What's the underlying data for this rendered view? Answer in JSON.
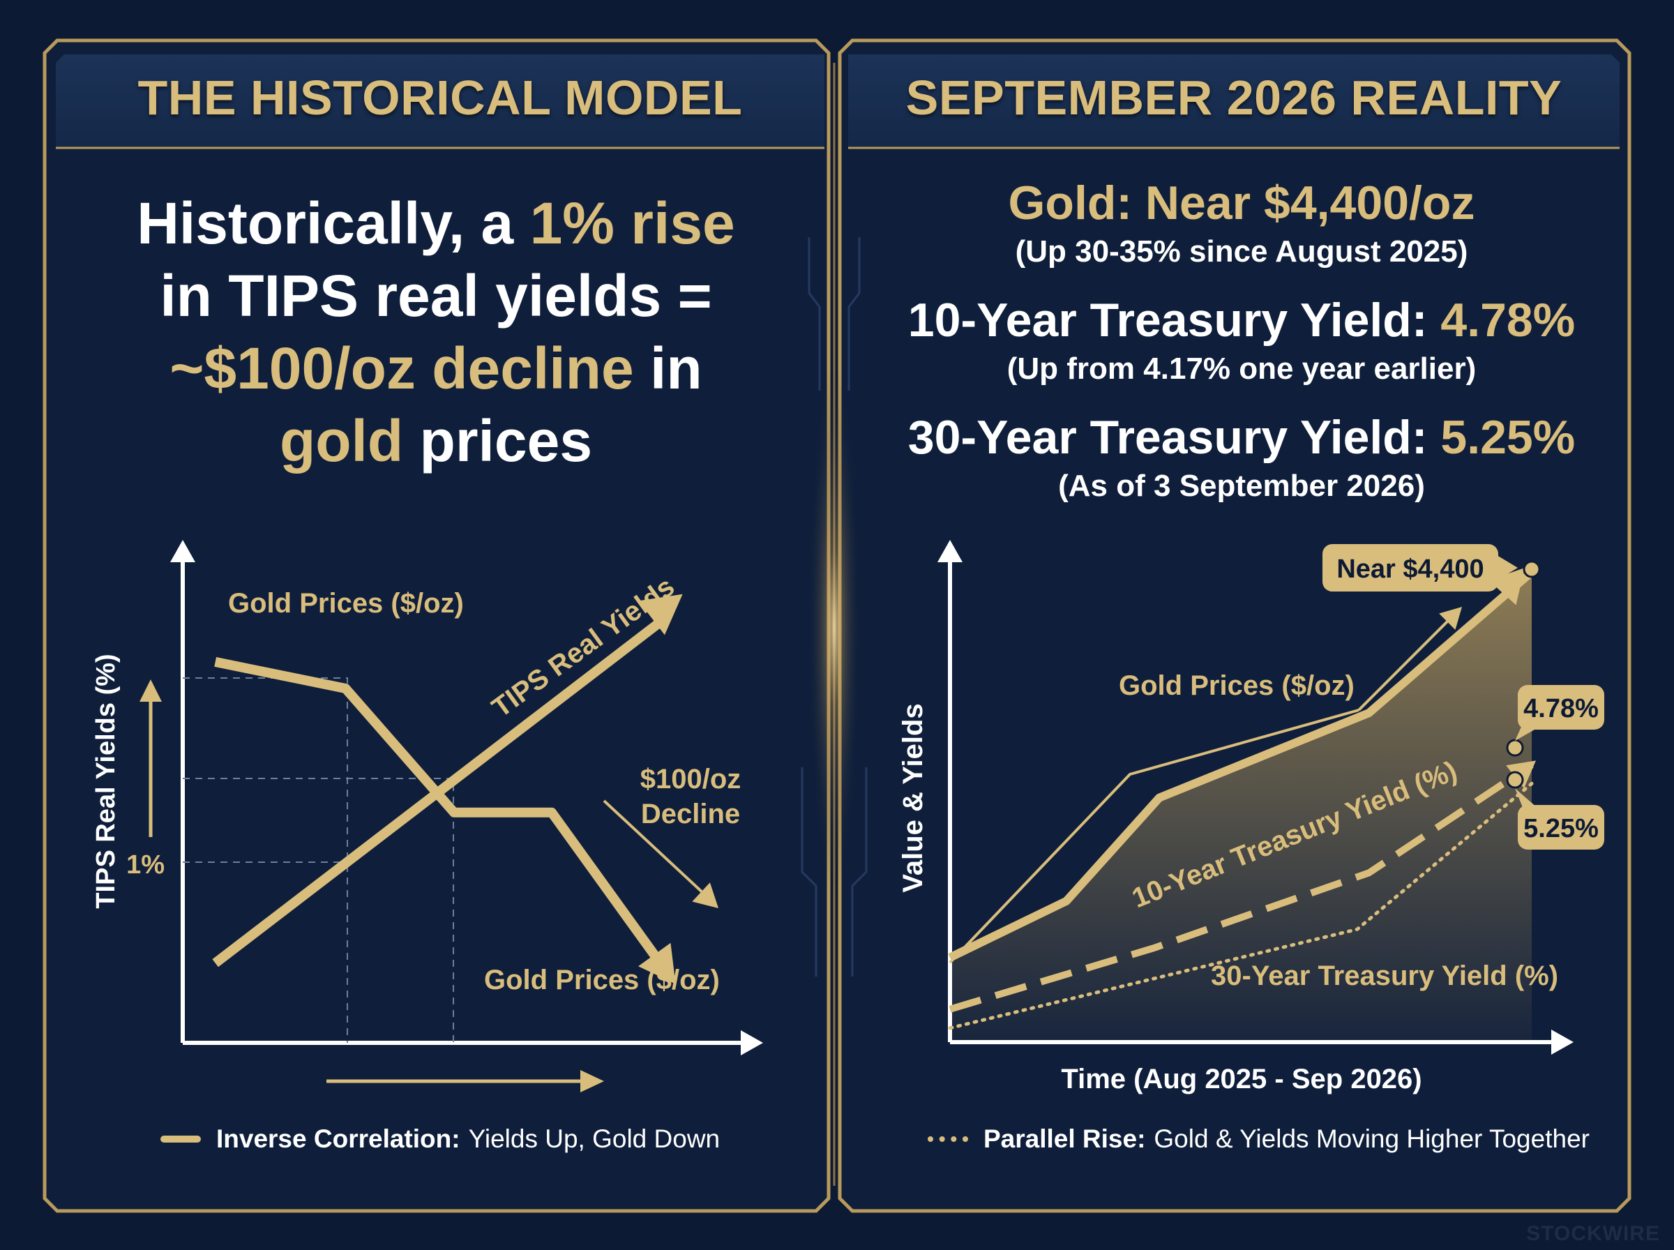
{
  "left_panel": {
    "title": "THE HISTORICAL MODEL",
    "headline": {
      "line1_a": "Historically, a ",
      "line1_b": "1% rise",
      "line2": "in TIPS real yields =",
      "line3_a": "~$100/oz decline",
      "line3_b": " in",
      "line4_a": "gold",
      "line4_b": " prices"
    },
    "legend": {
      "bold": "Inverse Correlation:",
      "text": "Yields Up, Gold Down"
    }
  },
  "right_panel": {
    "title": "SEPTEMBER 2026 REALITY",
    "stats": [
      {
        "label": "Gold: Near $4,400/oz",
        "value": "",
        "note": "(Up 30-35% since August 2025)"
      },
      {
        "label": "10-Year Treasury Yield: ",
        "value": "4.78%",
        "note": "(Up from 4.17% one year earlier)"
      },
      {
        "label": "30-Year Treasury Yield: ",
        "value": "5.25%",
        "note": "(As of 3 September 2026)"
      }
    ],
    "legend": {
      "bold": "Parallel Rise:",
      "text": "Gold & Yields Moving Higher Together"
    }
  },
  "watermark": "STOCKWIRE",
  "colors": {
    "background": "#0d1a33",
    "gold": "#d9bd7c",
    "frame": "#b89a5c",
    "text": "#ffffff"
  },
  "chart_data": [
    {
      "type": "line",
      "title": "",
      "xlabel": "",
      "ylabel": "TIPS Real Yields (%)",
      "y_tick_labels": [
        "1%"
      ],
      "series": [
        {
          "name": "Gold Prices ($/oz)",
          "trend": "down",
          "points": [
            [
              0.06,
              0.86
            ],
            [
              0.3,
              0.8
            ],
            [
              0.5,
              0.52
            ],
            [
              0.68,
              0.52
            ],
            [
              0.88,
              0.18
            ]
          ]
        },
        {
          "name": "TIPS Real Yields",
          "trend": "up",
          "points": [
            [
              0.06,
              0.18
            ],
            [
              0.88,
              0.95
            ]
          ]
        }
      ],
      "annotations": [
        "Gold Prices ($/oz)",
        "$100/oz",
        "Decline",
        "Gold Prices ($/oz)"
      ]
    },
    {
      "type": "line",
      "title": "",
      "xlabel": "Time (Aug 2025 - Sep 2026)",
      "ylabel": "Value & Yields",
      "series": [
        {
          "name": "Gold Prices ($/oz)",
          "points": [
            [
              0,
              0.18
            ],
            [
              0.2,
              0.3
            ],
            [
              0.36,
              0.52
            ],
            [
              0.72,
              0.7
            ],
            [
              1.0,
              1.0
            ]
          ]
        },
        {
          "name": "10-Year Treasury Yield (%)",
          "points": [
            [
              0,
              0.07
            ],
            [
              0.35,
              0.2
            ],
            [
              0.72,
              0.36
            ],
            [
              1.0,
              0.59
            ]
          ]
        },
        {
          "name": "30-Year Treasury Yield (%)",
          "points": [
            [
              0,
              0.03
            ],
            [
              0.3,
              0.12
            ],
            [
              0.7,
              0.24
            ],
            [
              1.0,
              0.55
            ]
          ]
        }
      ],
      "callouts": [
        "Near $4,400",
        "4.78%",
        "5.25%"
      ]
    }
  ]
}
